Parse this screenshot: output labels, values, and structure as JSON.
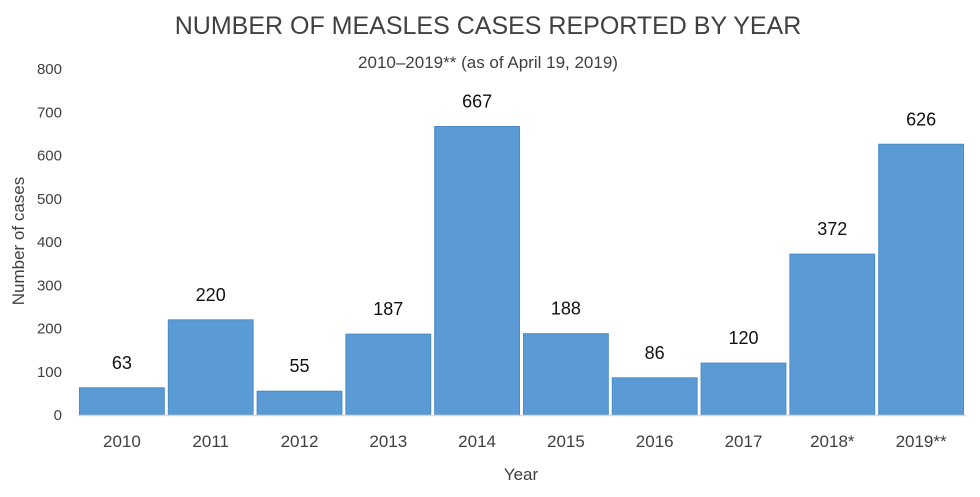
{
  "chart_data": {
    "type": "bar",
    "title": "NUMBER OF MEASLES CASES REPORTED BY YEAR",
    "subtitle": "2010–2019** (as of April 19, 2019)",
    "xlabel": "Year",
    "ylabel": "Number of cases",
    "categories": [
      "2010",
      "2011",
      "2012",
      "2013",
      "2014",
      "2015",
      "2016",
      "2017",
      "2018*",
      "2019**"
    ],
    "values": [
      63,
      220,
      55,
      187,
      667,
      188,
      86,
      120,
      372,
      626
    ],
    "ylim": [
      0,
      800
    ],
    "yticks": [
      0,
      100,
      200,
      300,
      400,
      500,
      600,
      700,
      800
    ],
    "grid": false,
    "bar_color": "#5b9bd5"
  }
}
